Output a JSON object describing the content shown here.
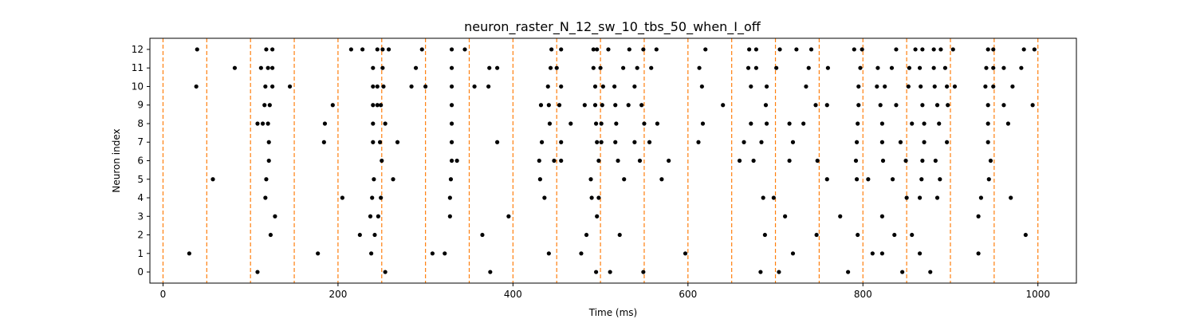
{
  "chart_data": {
    "type": "scatter",
    "title": "neuron_raster_N_12_sw_10_tbs_50_when_I_off",
    "xlabel": "Time (ms)",
    "ylabel": "Neuron index",
    "xlim": [
      -15,
      1044
    ],
    "ylim": [
      -0.6,
      12.6
    ],
    "x_ticks": [
      0,
      200,
      400,
      600,
      800,
      1000
    ],
    "y_ticks": [
      0,
      1,
      2,
      3,
      4,
      5,
      6,
      7,
      8,
      9,
      10,
      11,
      12
    ],
    "marker_color": "#000000",
    "vline_color": "#ff7f0e",
    "vlines": [
      0,
      50,
      100,
      150,
      200,
      250,
      300,
      350,
      400,
      450,
      500,
      550,
      600,
      650,
      700,
      750,
      800,
      850,
      900,
      950,
      1000
    ],
    "grid": false,
    "spikes": [
      {
        "neuron": 0,
        "times": [
          108,
          254,
          374,
          495,
          511,
          549,
          683,
          704,
          783,
          845,
          877
        ]
      },
      {
        "neuron": 1,
        "times": [
          30,
          177,
          238,
          308,
          322,
          441,
          478,
          597,
          720,
          811,
          822,
          865,
          932
        ]
      },
      {
        "neuron": 2,
        "times": [
          123,
          225,
          242,
          365,
          484,
          522,
          688,
          747,
          794,
          836,
          856,
          986
        ]
      },
      {
        "neuron": 3,
        "times": [
          128,
          237,
          246,
          328,
          395,
          496,
          711,
          774,
          822,
          932
        ]
      },
      {
        "neuron": 4,
        "times": [
          117,
          205,
          239,
          249,
          328,
          436,
          490,
          498,
          686,
          698,
          850,
          865,
          885,
          935,
          969
        ]
      },
      {
        "neuron": 5,
        "times": [
          57,
          118,
          241,
          263,
          329,
          431,
          489,
          527,
          570,
          759,
          793,
          806,
          834,
          867,
          888,
          944
        ]
      },
      {
        "neuron": 6,
        "times": [
          121,
          250,
          330,
          336,
          430,
          447,
          455,
          498,
          520,
          545,
          578,
          659,
          675,
          716,
          748,
          792,
          823,
          849,
          868,
          883,
          946
        ]
      },
      {
        "neuron": 7,
        "times": [
          121,
          184,
          240,
          248,
          268,
          330,
          382,
          433,
          455,
          496,
          501,
          517,
          539,
          556,
          612,
          664,
          684,
          720,
          793,
          822,
          843,
          870,
          896,
          943
        ]
      },
      {
        "neuron": 8,
        "times": [
          108,
          114,
          120,
          185,
          240,
          254,
          330,
          442,
          466,
          495,
          501,
          518,
          550,
          565,
          617,
          672,
          690,
          716,
          732,
          794,
          822,
          856,
          870,
          887,
          943,
          966
        ]
      },
      {
        "neuron": 9,
        "times": [
          116,
          122,
          194,
          240,
          245,
          249,
          330,
          432,
          441,
          453,
          482,
          494,
          502,
          517,
          532,
          547,
          640,
          689,
          746,
          759,
          795,
          820,
          838,
          868,
          885,
          897,
          943,
          961,
          994
        ]
      },
      {
        "neuron": 10,
        "times": [
          38,
          117,
          125,
          145,
          240,
          245,
          252,
          284,
          300,
          330,
          356,
          372,
          440,
          455,
          494,
          503,
          516,
          539,
          616,
          672,
          690,
          735,
          795,
          816,
          825,
          852,
          866,
          882,
          896,
          905,
          940,
          949,
          971
        ]
      },
      {
        "neuron": 11,
        "times": [
          82,
          112,
          120,
          125,
          240,
          251,
          289,
          330,
          373,
          382,
          443,
          450,
          492,
          500,
          526,
          542,
          558,
          613,
          669,
          678,
          701,
          738,
          760,
          797,
          817,
          833,
          853,
          865,
          881,
          894,
          941,
          949,
          961,
          981
        ]
      },
      {
        "neuron": 12,
        "times": [
          39,
          118,
          125,
          215,
          228,
          245,
          251,
          258,
          296,
          330,
          345,
          444,
          455,
          492,
          496,
          509,
          533,
          549,
          564,
          620,
          670,
          678,
          705,
          724,
          741,
          790,
          799,
          838,
          860,
          868,
          881,
          889,
          903,
          943,
          949,
          984,
          996
        ]
      }
    ]
  }
}
